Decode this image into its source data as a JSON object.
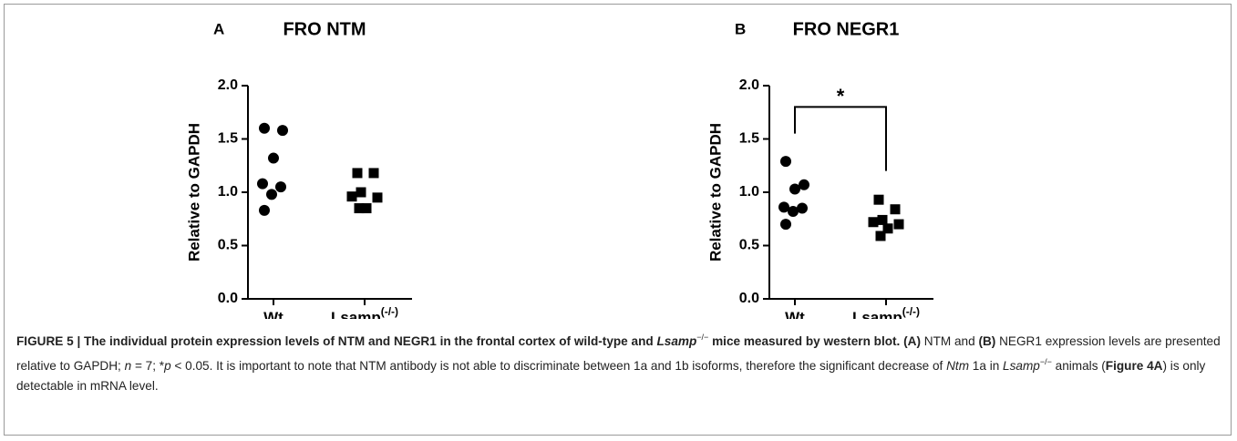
{
  "chart_data": [
    {
      "type": "scatter",
      "panel": "A",
      "title": "FRO NTM",
      "ylabel": "Relative to GAPDH",
      "categories": [
        "Wt",
        "Lsamp"
      ],
      "category_superscript": "(-/-)",
      "series": [
        {
          "marker": "circle",
          "color": "#000000",
          "values": [
            1.6,
            1.58,
            1.32,
            1.08,
            1.05,
            0.98,
            0.83
          ]
        },
        {
          "marker": "square",
          "color": "#000000",
          "values": [
            1.18,
            1.18,
            1.0,
            0.96,
            0.95,
            0.85,
            0.85
          ]
        }
      ],
      "ylim": [
        0,
        2
      ],
      "yticks": [
        {
          "value": 0,
          "label": "0.0"
        },
        0.5,
        {
          "value": 1,
          "label": "1.0"
        },
        1.5,
        {
          "value": 2,
          "label": "2.0"
        }
      ]
    },
    {
      "type": "scatter",
      "panel": "B",
      "title": "FRO NEGR1",
      "ylabel": "Relative to GAPDH",
      "categories": [
        "Wt",
        "Lsamp"
      ],
      "category_superscript": "(-/-)",
      "series": [
        {
          "marker": "circle",
          "color": "#000000",
          "values": [
            1.29,
            1.07,
            1.03,
            0.86,
            0.85,
            0.82,
            0.7
          ]
        },
        {
          "marker": "square",
          "color": "#000000",
          "values": [
            0.93,
            0.84,
            0.74,
            0.72,
            0.7,
            0.66,
            0.59
          ]
        }
      ],
      "annotation": "*",
      "ylim": [
        0,
        2
      ],
      "yticks": [
        {
          "value": 0,
          "label": "0.0"
        },
        0.5,
        {
          "value": 1,
          "label": "1.0"
        },
        1.5,
        {
          "value": 2,
          "label": "2.0"
        }
      ]
    }
  ],
  "caption": [
    {
      "text": "FIGURE 5 | The individual protein expression levels of NTM and NEGR1 in the frontal cortex of wild-type and ",
      "style": "b"
    },
    {
      "text": "Lsamp",
      "style": "bi"
    },
    {
      "text": "−/−",
      "style": "sup"
    },
    {
      "text": " mice measured by western blot. (A)",
      "style": "b"
    },
    {
      "text": " NTM and ",
      "style": "n"
    },
    {
      "text": "(B)",
      "style": "b"
    },
    {
      "text": " NEGR1 expression levels are presented relative to GAPDH; ",
      "style": "n"
    },
    {
      "text": "n",
      "style": "i"
    },
    {
      "text": " = 7; *",
      "style": "n"
    },
    {
      "text": "p",
      "style": "i"
    },
    {
      "text": " < 0.05. It is important to note that NTM antibody is not able to discriminate between 1a and 1b isoforms, therefore the significant decrease of ",
      "style": "n"
    },
    {
      "text": "Ntm",
      "style": "i"
    },
    {
      "text": " 1a in ",
      "style": "n"
    },
    {
      "text": "Lsamp",
      "style": "i"
    },
    {
      "text": "−/−",
      "style": "sup"
    },
    {
      "text": " animals (",
      "style": "n"
    },
    {
      "text": "Figure 4A",
      "style": "b"
    },
    {
      "text": ") is only detectable in mRNA level.",
      "style": "n"
    }
  ]
}
